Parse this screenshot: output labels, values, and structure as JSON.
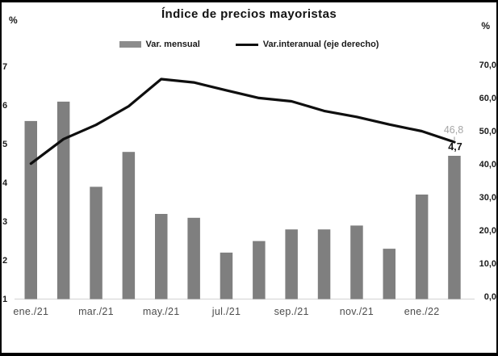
{
  "title": "Índice de precios mayoristas",
  "left_axis": {
    "unit": "%",
    "tick_labels": [
      "7",
      "6",
      "5",
      "4",
      "3",
      "2",
      "1"
    ],
    "min": 1,
    "max": 7
  },
  "right_axis": {
    "unit": "%",
    "tick_labels": [
      "70,0",
      "60,0",
      "50,0",
      "40,0",
      "30,0",
      "20,0",
      "10,0",
      "0,0"
    ],
    "min": 0,
    "max": 70
  },
  "legend": [
    {
      "label": "Var. mensual",
      "type": "bar",
      "color": "#7f7f7f"
    },
    {
      "label": "Var.interanual (eje derecho)",
      "type": "line",
      "color": "#0f0f0f"
    }
  ],
  "x_axis": {
    "visible_labels": [
      "ene./21",
      "mar./21",
      "may./21",
      "jul./21",
      "sep./21",
      "nov./21",
      "ene./22"
    ]
  },
  "chart_data": {
    "type": "bar",
    "subtype": "bar-and-line-dual-axis",
    "title": "Índice de precios mayoristas",
    "categories": [
      "ene./21",
      "feb./21",
      "mar./21",
      "abr./21",
      "may./21",
      "jun./21",
      "jul./21",
      "ago./21",
      "sep./21",
      "oct./21",
      "nov./21",
      "dic./21",
      "ene./22",
      "feb./22"
    ],
    "series": [
      {
        "name": "Var. mensual",
        "type": "bar",
        "axis": "left",
        "color": "#7f7f7f",
        "values": [
          5.6,
          6.1,
          3.9,
          4.8,
          3.2,
          3.1,
          2.2,
          2.5,
          2.8,
          2.8,
          2.9,
          2.3,
          3.7,
          4.7
        ]
      },
      {
        "name": "Var.interanual (eje derecho)",
        "type": "line",
        "axis": "right",
        "color": "#0f0f0f",
        "values": [
          40.3,
          47.7,
          52.0,
          57.6,
          65.8,
          64.8,
          62.4,
          60.1,
          59.1,
          56.2,
          54.4,
          52.1,
          50.1,
          46.8
        ]
      }
    ],
    "annotations": {
      "line_last": "46,8",
      "bar_last": "4,7"
    },
    "left_ylim": [
      1,
      7
    ],
    "right_ylim": [
      0,
      70
    ],
    "grid": false,
    "legend_position": "top-center",
    "baseline_color": "#d9d9d9"
  }
}
